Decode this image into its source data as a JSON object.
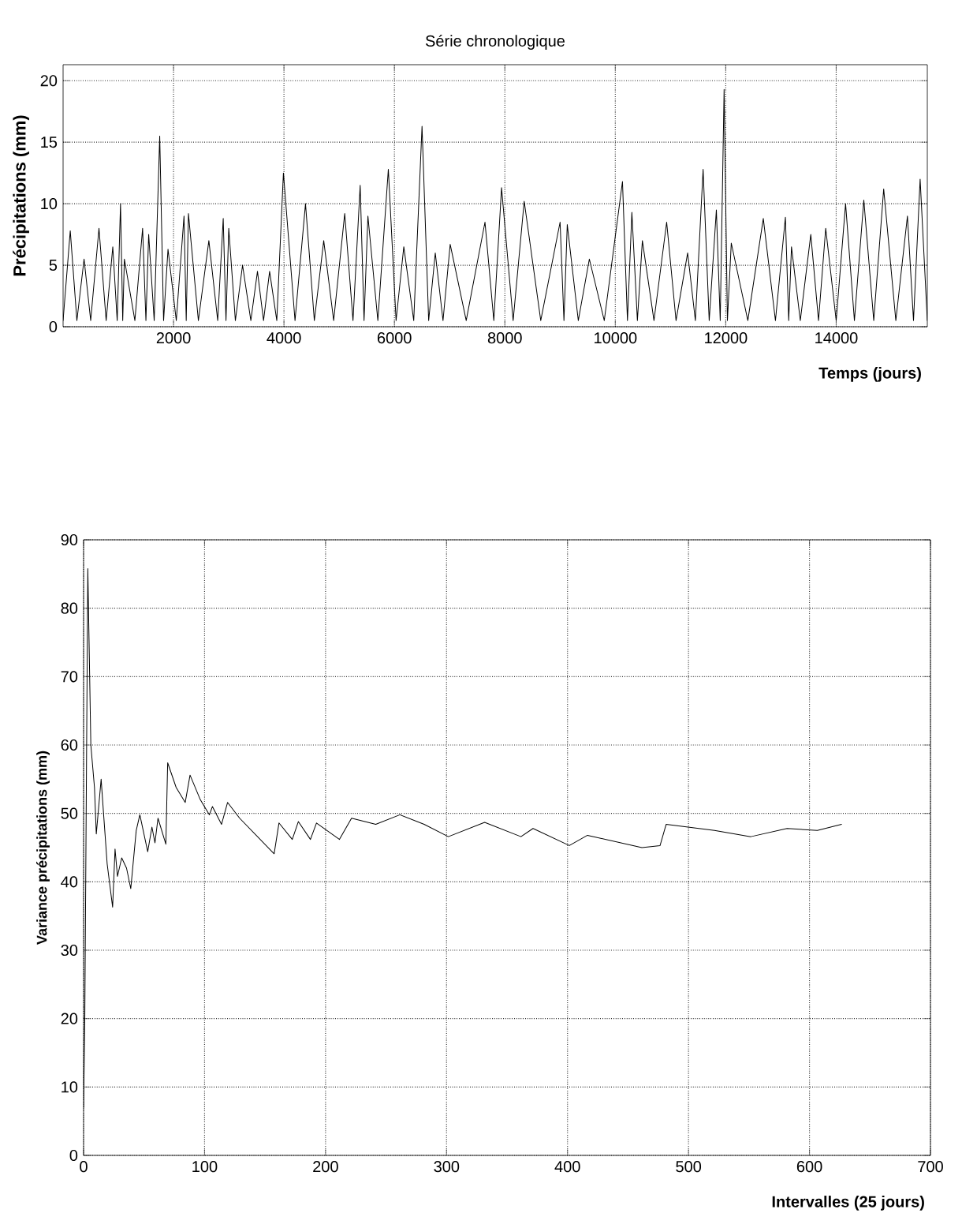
{
  "chart_data": [
    {
      "type": "line",
      "title": "Série chronologique",
      "ylabel": "Précipitations (mm)",
      "xlabel": "Temps (jours)",
      "x": [
        0,
        130,
        250,
        380,
        500,
        650,
        780,
        900,
        980,
        1040,
        1080,
        1110,
        1300,
        1440,
        1500,
        1550,
        1650,
        1750,
        1820,
        1900,
        2050,
        2190,
        2230,
        2270,
        2450,
        2640,
        2800,
        2900,
        2950,
        3000,
        3120,
        3250,
        3400,
        3520,
        3630,
        3740,
        3870,
        3990,
        4200,
        4390,
        4550,
        4720,
        4900,
        5100,
        5250,
        5380,
        5450,
        5520,
        5700,
        5890,
        6030,
        6170,
        6350,
        6500,
        6620,
        6740,
        6880,
        7010,
        7300,
        7640,
        7800,
        7940,
        8150,
        8350,
        8650,
        9000,
        9070,
        9130,
        9330,
        9530,
        9800,
        10130,
        10220,
        10300,
        10400,
        10490,
        10700,
        10930,
        11100,
        11310,
        11450,
        11590,
        11700,
        11830,
        11900,
        11970,
        12030,
        12100,
        12400,
        12680,
        12900,
        13080,
        13140,
        13190,
        13350,
        13540,
        13680,
        13810,
        14000,
        14170,
        14330,
        14500,
        14680,
        14860,
        15080,
        15290,
        15400,
        15520,
        15650
      ],
      "values": [
        0.5,
        7.8,
        0.5,
        5.5,
        0.5,
        8,
        0.5,
        6.5,
        0.5,
        10,
        0.5,
        5.5,
        0.5,
        8,
        0.5,
        7.5,
        0.5,
        15.5,
        0.5,
        6.3,
        0.5,
        9,
        0.5,
        9.2,
        0.5,
        7,
        0.5,
        8.8,
        0.5,
        8,
        0.5,
        5,
        0.5,
        4.5,
        0.5,
        4.5,
        0.5,
        12.5,
        0.5,
        10,
        0.5,
        7,
        0.5,
        9.2,
        0.5,
        11.5,
        0.5,
        9,
        0.5,
        12.8,
        0.5,
        6.5,
        0.5,
        16.3,
        0.5,
        6,
        0.5,
        6.7,
        0.5,
        8.5,
        0.5,
        11.3,
        0.5,
        10.2,
        0.5,
        8.5,
        0.5,
        8.3,
        0.5,
        5.5,
        0.5,
        11.8,
        0.5,
        9.3,
        0.5,
        7,
        0.5,
        8.5,
        0.5,
        6,
        0.5,
        12.8,
        0.5,
        9.5,
        0.5,
        19.3,
        0.5,
        6.8,
        0.5,
        8.8,
        0.5,
        8.9,
        0.5,
        6.5,
        0.5,
        7.5,
        0.5,
        8,
        0.5,
        10,
        0.5,
        10.3,
        0.5,
        11.2,
        0.5,
        9,
        0.5,
        12,
        0.5
      ],
      "color": "#000000",
      "xlim": [
        0,
        15650
      ],
      "ylim": [
        0,
        21.3
      ],
      "xticks": [
        2000,
        4000,
        6000,
        8000,
        10000,
        12000,
        14000
      ],
      "yticks": [
        0,
        5,
        10,
        15,
        20
      ],
      "grid": true
    },
    {
      "type": "line",
      "ylabel": "Variance précipitations (mm)",
      "xlabel": "Intervalles (25 jours)",
      "x": [
        0,
        1,
        3.5,
        6,
        9,
        10.5,
        14.5,
        16.5,
        19.5,
        24,
        26,
        28,
        31.5,
        35.5,
        39,
        43.5,
        46.5,
        53,
        56.5,
        59,
        61.5,
        68,
        69.5,
        76.5,
        84,
        88,
        96.5,
        104,
        106.5,
        114,
        119,
        129,
        157.5,
        161.5,
        172.5,
        177.5,
        187.5,
        192.5,
        211.5,
        221.5,
        241.5,
        261.5,
        281.5,
        301.5,
        331.5,
        361.5,
        371.5,
        401.5,
        416.5,
        461.5,
        476.5,
        481.5,
        521.5,
        551.5,
        581.5,
        606.5,
        626.5
      ],
      "values": [
        7,
        20,
        85.8,
        60,
        53.8,
        47,
        55,
        50,
        42.6,
        36.3,
        44.8,
        40.8,
        43.5,
        42,
        39,
        47.5,
        49.8,
        44.4,
        48,
        45.7,
        49.3,
        45.5,
        57.4,
        53.8,
        51.6,
        55.6,
        52,
        49.8,
        51,
        48.4,
        51.6,
        49.3,
        44.1,
        48.6,
        46.2,
        48.8,
        46.2,
        48.6,
        46.2,
        49.3,
        48.4,
        49.8,
        48.4,
        46.6,
        48.7,
        46.6,
        47.8,
        45.3,
        46.8,
        45,
        45.3,
        48.4,
        47.5,
        46.6,
        47.8,
        47.5,
        48.4
      ],
      "color": "#000000",
      "xlim": [
        0,
        700
      ],
      "ylim": [
        0,
        90
      ],
      "xticks": [
        0,
        100,
        200,
        300,
        400,
        500,
        600,
        700
      ],
      "yticks": [
        0,
        10,
        20,
        30,
        40,
        50,
        60,
        70,
        80,
        90
      ],
      "grid": true
    }
  ]
}
